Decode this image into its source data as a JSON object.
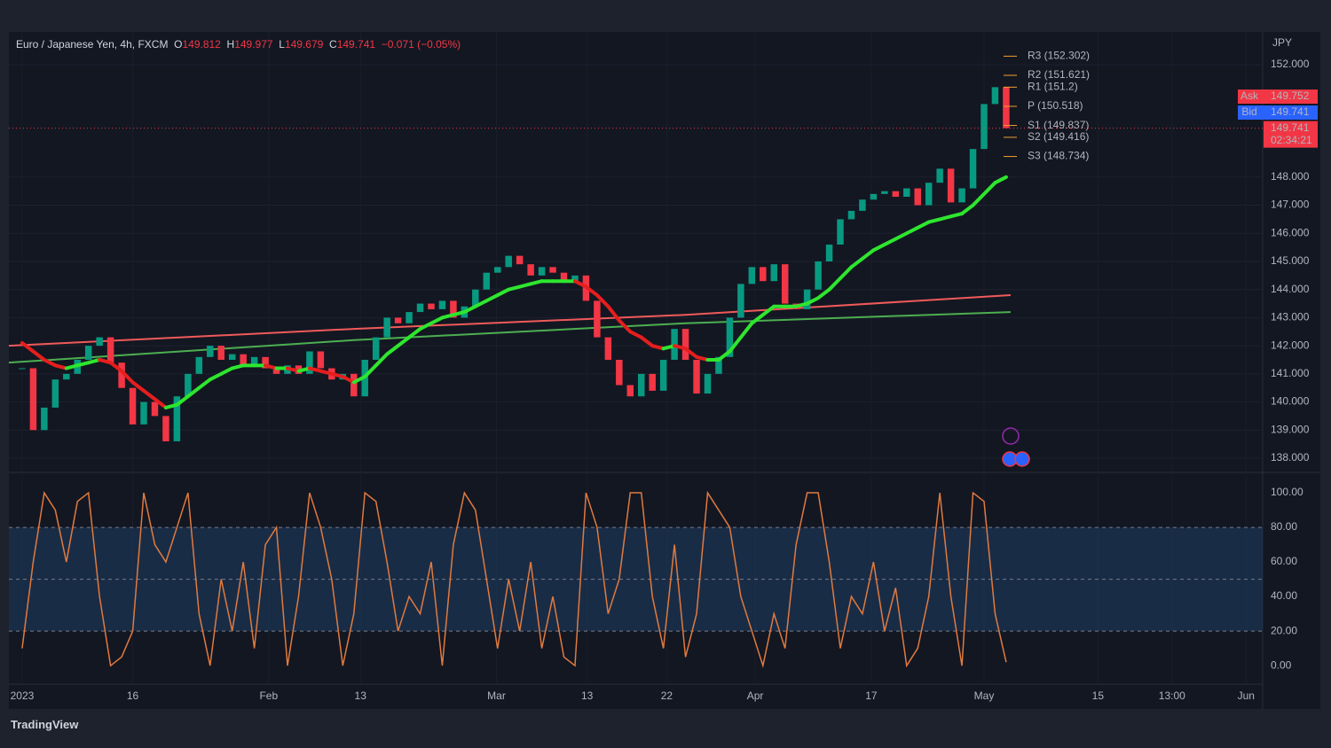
{
  "chart_data": {
    "type": "candlestick",
    "title": "Euro / Japanese Yen, 4h, FXCM",
    "ohlc": {
      "labels": [
        "O",
        "H",
        "L",
        "C"
      ],
      "values": [
        149.812,
        149.977,
        149.679,
        149.741
      ]
    },
    "change_label": "−0.071 (−0.05%)",
    "currency": "JPY",
    "up_color": "#089981",
    "down_color": "#f23645",
    "xlim": [
      -1.2,
      112.2
    ],
    "xticks": [
      {
        "value": 0,
        "label": "2023"
      },
      {
        "value": 10,
        "label": "16"
      },
      {
        "value": 22.3,
        "label": "Feb"
      },
      {
        "value": 30.6,
        "label": "13"
      },
      {
        "value": 42.9,
        "label": "Mar"
      },
      {
        "value": 51.1,
        "label": "13"
      },
      {
        "value": 58.3,
        "label": "22"
      },
      {
        "value": 66.3,
        "label": "Apr"
      },
      {
        "value": 76.8,
        "label": "17"
      },
      {
        "value": 87,
        "label": "May"
      },
      {
        "value": 97.3,
        "label": "15"
      },
      {
        "value": 104,
        "label": "13:00"
      },
      {
        "value": 110.7,
        "label": "Jun"
      }
    ],
    "ylim": [
      137.59,
      153.04
    ],
    "yticks": [
      {
        "value": 138,
        "label": "138.000"
      },
      {
        "value": 139,
        "label": "139.000"
      },
      {
        "value": 140,
        "label": "140.000"
      },
      {
        "value": 141,
        "label": "141.000"
      },
      {
        "value": 142,
        "label": "142.000"
      },
      {
        "value": 143,
        "label": "143.000"
      },
      {
        "value": 144,
        "label": "144.000"
      },
      {
        "value": 145,
        "label": "145.000"
      },
      {
        "value": 146,
        "label": "146.000"
      },
      {
        "value": 147,
        "label": "147.000"
      },
      {
        "value": 148,
        "label": "148.000"
      },
      {
        "value": 152,
        "label": "152.000"
      }
    ],
    "x": [
      0,
      1,
      2,
      3,
      4,
      5,
      6,
      7,
      8,
      9,
      10,
      11,
      12,
      13,
      14,
      15,
      16,
      17,
      18,
      19,
      20,
      21,
      22,
      23,
      24,
      25,
      26,
      27,
      28,
      29,
      30,
      31,
      32,
      33,
      34,
      35,
      36,
      37,
      38,
      39,
      40,
      41,
      42,
      43,
      44,
      45,
      46,
      47,
      48,
      49,
      50,
      51,
      52,
      53,
      54,
      55,
      56,
      57,
      58,
      59,
      60,
      61,
      62,
      63,
      64,
      65,
      66,
      67,
      68,
      69,
      70,
      71,
      72,
      73,
      74,
      75,
      76,
      77,
      78,
      79,
      80,
      81,
      82,
      83,
      84,
      85,
      86,
      87,
      88,
      89
    ],
    "close": [
      141.2,
      139.0,
      139.8,
      140.8,
      141.0,
      141.5,
      142.0,
      142.3,
      141.4,
      140.5,
      139.2,
      140.0,
      139.5,
      138.6,
      140.2,
      141.0,
      141.6,
      142.0,
      141.5,
      141.7,
      141.3,
      141.6,
      141.2,
      141.0,
      141.3,
      141.0,
      141.8,
      141.2,
      140.8,
      141.0,
      140.2,
      141.5,
      142.3,
      143.0,
      142.8,
      143.2,
      143.5,
      143.3,
      143.6,
      143.0,
      143.4,
      144.0,
      144.6,
      144.8,
      145.2,
      144.9,
      144.5,
      144.8,
      144.6,
      144.3,
      144.5,
      143.6,
      142.3,
      141.5,
      140.6,
      140.2,
      141.0,
      140.4,
      141.5,
      142.6,
      141.5,
      140.3,
      141.0,
      141.6,
      143.0,
      144.2,
      144.8,
      144.3,
      144.9,
      143.5,
      143.3,
      144.0,
      145.0,
      145.6,
      146.5,
      146.8,
      147.2,
      147.4,
      147.5,
      147.3,
      147.6,
      147.0,
      147.8,
      148.3,
      147.1,
      147.6,
      149.0,
      150.6,
      151.2,
      149.741
    ],
    "ma": {
      "rising_color": "#2ee62e",
      "falling_color": "#e61e1e",
      "values": [
        142.1,
        141.8,
        141.5,
        141.3,
        141.2,
        141.3,
        141.4,
        141.5,
        141.4,
        141.1,
        140.7,
        140.4,
        140.1,
        139.8,
        139.9,
        140.2,
        140.5,
        140.8,
        141.0,
        141.2,
        141.3,
        141.3,
        141.3,
        141.2,
        141.2,
        141.1,
        141.2,
        141.1,
        141.0,
        140.9,
        140.7,
        140.9,
        141.3,
        141.7,
        142.0,
        142.3,
        142.6,
        142.8,
        143.0,
        143.1,
        143.2,
        143.4,
        143.6,
        143.8,
        144.0,
        144.1,
        144.2,
        144.3,
        144.3,
        144.3,
        144.3,
        144.1,
        143.8,
        143.4,
        142.9,
        142.5,
        142.3,
        142.0,
        141.9,
        142.0,
        141.9,
        141.6,
        141.5,
        141.5,
        141.8,
        142.3,
        142.8,
        143.1,
        143.4,
        143.4,
        143.4,
        143.5,
        143.7,
        144.0,
        144.4,
        144.8,
        145.1,
        145.4,
        145.6,
        145.8,
        146.0,
        146.2,
        146.4,
        146.5,
        146.6,
        146.7,
        147.0,
        147.4,
        147.8,
        148.0
      ]
    },
    "long_ma": [
      {
        "color": "#f05a5a",
        "x": [
          -1.2,
          30,
          60,
          89.4
        ],
        "values": [
          142.0,
          142.6,
          143.1,
          143.8
        ]
      },
      {
        "color": "#4caf50",
        "x": [
          -1.2,
          30,
          60,
          89.4
        ],
        "values": [
          141.4,
          142.2,
          142.8,
          143.2
        ]
      }
    ],
    "pivots": [
      {
        "label": "R3 (152.302)",
        "value": 152.302
      },
      {
        "label": "R2 (151.621)",
        "value": 151.621
      },
      {
        "label": "R1 (151.2)",
        "value": 151.2
      },
      {
        "label": "P (150.518)",
        "value": 150.518
      },
      {
        "label": "S1 (149.837)",
        "value": 149.837
      },
      {
        "label": "S2 (149.416)",
        "value": 149.416
      },
      {
        "label": "S3 (148.734)",
        "value": 148.734
      }
    ],
    "pivot_color": "#f0a030",
    "ask": {
      "label": "Ask",
      "value": 149.752,
      "value_label": "149.752",
      "color": "#f23645"
    },
    "bid": {
      "label": "Bid",
      "value": 149.741,
      "value_label": "149.741",
      "color": "#2962ff"
    },
    "last": {
      "value": 149.741,
      "value_label": "149.741",
      "countdown": "02:34:21",
      "color": "#f23645"
    },
    "stoch": {
      "color": "#e07a3f",
      "ylim": [
        -9.7,
        110.8
      ],
      "yticks": [
        {
          "value": 0,
          "label": "0.00"
        },
        {
          "value": 20,
          "label": "20.00"
        },
        {
          "value": 40,
          "label": "40.00"
        },
        {
          "value": 60,
          "label": "60.00"
        },
        {
          "value": 80,
          "label": "80.00"
        },
        {
          "value": 100,
          "label": "100.00"
        }
      ],
      "bands": [
        20,
        50,
        80
      ],
      "values": [
        10,
        60,
        100,
        90,
        60,
        95,
        100,
        40,
        0,
        5,
        20,
        100,
        70,
        60,
        80,
        100,
        30,
        0,
        50,
        20,
        60,
        10,
        70,
        80,
        0,
        40,
        100,
        80,
        50,
        0,
        30,
        100,
        95,
        60,
        20,
        40,
        30,
        60,
        0,
        70,
        100,
        90,
        50,
        10,
        50,
        20,
        60,
        10,
        40,
        5,
        0,
        100,
        80,
        30,
        50,
        100,
        100,
        40,
        10,
        70,
        5,
        30,
        100,
        90,
        80,
        40,
        20,
        0,
        30,
        10,
        70,
        100,
        100,
        60,
        10,
        40,
        30,
        60,
        20,
        45,
        0,
        10,
        40,
        100,
        40,
        0,
        100,
        95,
        30,
        2
      ]
    },
    "brand": "TradingView"
  }
}
